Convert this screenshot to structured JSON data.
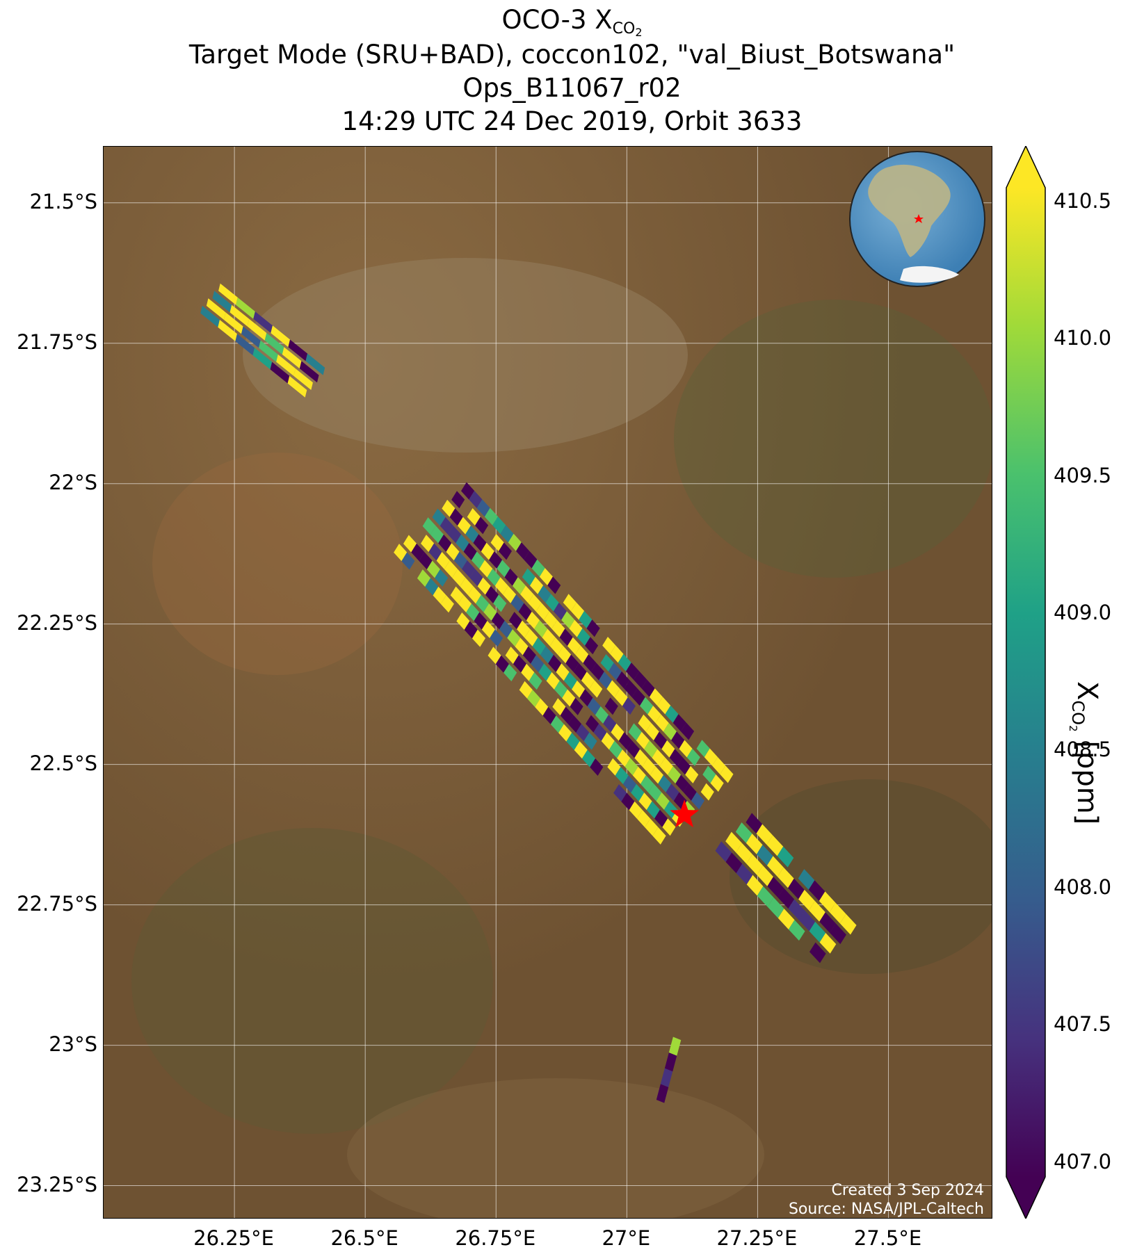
{
  "title": {
    "line1_main": "OCO-3 X",
    "line1_sub": "CO",
    "line1_sub2": "2",
    "line2": "Target Mode (SRU+BAD), coccon102, \"val_Biust_Botswana\"",
    "line3": "Ops_B11067_r02",
    "line4": "14:29 UTC 24 Dec 2019, Orbit 3633"
  },
  "map": {
    "lon_range": [
      26.0,
      27.7
    ],
    "lat_range": [
      -23.31,
      -21.4
    ],
    "lat_ticks": [
      {
        "value": -21.5,
        "label": "21.5°S"
      },
      {
        "value": -21.75,
        "label": "21.75°S"
      },
      {
        "value": -22.0,
        "label": "22°S"
      },
      {
        "value": -22.25,
        "label": "22.25°S"
      },
      {
        "value": -22.5,
        "label": "22.5°S"
      },
      {
        "value": -22.75,
        "label": "22.75°S"
      },
      {
        "value": -23.0,
        "label": "23°S"
      },
      {
        "value": -23.25,
        "label": "23.25°S"
      }
    ],
    "lon_ticks": [
      {
        "value": 26.25,
        "label": "26.25°E"
      },
      {
        "value": 26.5,
        "label": "26.5°E"
      },
      {
        "value": 26.75,
        "label": "26.75°E"
      },
      {
        "value": 27.0,
        "label": "27°E"
      },
      {
        "value": 27.25,
        "label": "27.25°E"
      },
      {
        "value": 27.5,
        "label": "27.5°E"
      }
    ],
    "target_marker": {
      "lon": 27.11,
      "lat": -22.59,
      "color": "#ff0000"
    },
    "background_color": "#7a5a35"
  },
  "colorbar": {
    "min": 407.0,
    "max": 410.5,
    "ticks": [
      "410.5",
      "410.0",
      "409.5",
      "409.0",
      "408.5",
      "408.0",
      "407.5",
      "407.0"
    ],
    "label_main": "X",
    "label_sub": "CO",
    "label_sub2": "2",
    "label_unit": " [ppm]",
    "colors": [
      "#440154",
      "#46327e",
      "#365c8d",
      "#277f8e",
      "#1fa187",
      "#4ac16d",
      "#a0da39",
      "#fde725"
    ]
  },
  "credits": {
    "created": "Created 3 Sep 2024",
    "source": "Source: NASA/JPL-Caltech"
  }
}
